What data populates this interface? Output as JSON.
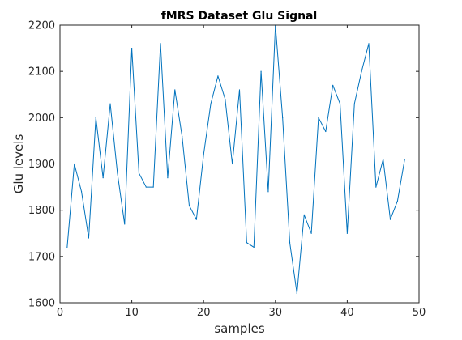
{
  "chart_data": {
    "type": "line",
    "title": "fMRS Dataset Glu Signal",
    "xlabel": "samples",
    "ylabel": "Glu levels",
    "xlim": [
      0,
      50
    ],
    "ylim": [
      1600,
      2200
    ],
    "xticks": [
      0,
      10,
      20,
      30,
      40,
      50
    ],
    "yticks": [
      1600,
      1700,
      1800,
      1900,
      2000,
      2100,
      2200
    ],
    "grid": false,
    "line_color": "#0072BD",
    "series": [
      {
        "x": [
          1,
          2,
          3,
          4,
          5,
          6,
          7,
          8,
          9,
          10,
          11,
          12,
          13,
          14,
          15,
          16,
          17,
          18,
          19,
          20,
          21,
          22,
          23,
          24,
          25,
          26,
          27,
          28,
          29,
          30,
          31,
          32,
          33,
          34,
          35,
          36,
          37,
          38,
          39,
          40,
          41,
          42,
          43,
          44,
          45,
          46,
          47,
          48
        ],
        "values": [
          1720,
          1900,
          1840,
          1740,
          2000,
          1870,
          2030,
          1880,
          1770,
          2150,
          1880,
          1850,
          1850,
          2160,
          1870,
          2060,
          1960,
          1810,
          1780,
          1920,
          2030,
          2090,
          2040,
          1900,
          2060,
          1730,
          1720,
          2100,
          1840,
          2200,
          2000,
          1730,
          1620,
          1790,
          1750,
          2000,
          1970,
          2070,
          2030,
          1750,
          2030,
          2100,
          2160,
          1850,
          1910,
          1780,
          1820,
          1910
        ]
      }
    ]
  }
}
